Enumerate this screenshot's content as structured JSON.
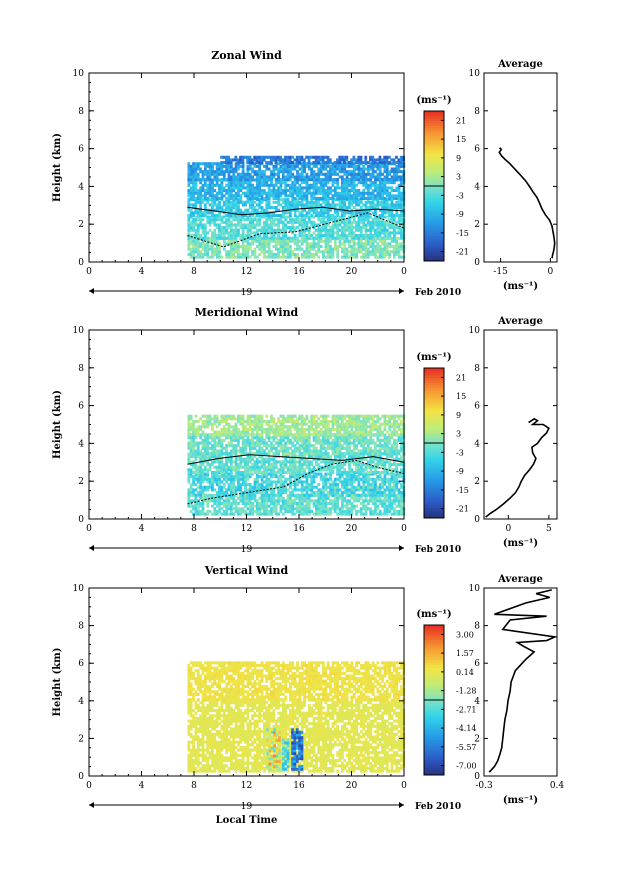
{
  "chart_data": [
    {
      "type": "heatmap",
      "title": "Zonal Wind",
      "xlabel": "",
      "ylabel": "Height (km)",
      "xlim": [
        0,
        24
      ],
      "ylim": [
        0,
        10
      ],
      "x_ticks": [
        "0",
        "4",
        "8",
        "12",
        "16",
        "20",
        "0"
      ],
      "y_ticks": [
        "0",
        "2",
        "4",
        "6",
        "8",
        "10"
      ],
      "date_day": "19",
      "date_label": "Feb 2010",
      "colorbar": {
        "unit": "(ms⁻¹)",
        "ticks": [
          "21",
          "15",
          "9",
          "3",
          "-3",
          "-9",
          "-15",
          "-21"
        ],
        "min": -24,
        "max": 24
      },
      "profile": {
        "title": "Average",
        "xlabel": "(ms⁻¹)",
        "xlim": [
          -20,
          2
        ],
        "ylim": [
          0,
          10
        ],
        "x_ticks": [
          "-15",
          "0"
        ],
        "y_ticks": [
          "0",
          "2",
          "4",
          "6",
          "8",
          "10"
        ],
        "points": [
          [
            0.5,
            0.2
          ],
          [
            0.7,
            0.4
          ],
          [
            1.0,
            0.6
          ],
          [
            1.2,
            0.8
          ],
          [
            1.3,
            1.0
          ],
          [
            1.1,
            1.3
          ],
          [
            0.8,
            1.6
          ],
          [
            0.5,
            1.9
          ],
          [
            -0.2,
            2.2
          ],
          [
            -1.5,
            2.5
          ],
          [
            -2.5,
            2.8
          ],
          [
            -3.2,
            3.1
          ],
          [
            -4.0,
            3.4
          ],
          [
            -5.2,
            3.7
          ],
          [
            -6.3,
            4.0
          ],
          [
            -7.5,
            4.3
          ],
          [
            -9.0,
            4.6
          ],
          [
            -10.6,
            4.9
          ],
          [
            -12.2,
            5.2
          ],
          [
            -13.5,
            5.4
          ],
          [
            -14.6,
            5.6
          ],
          [
            -15.4,
            5.8
          ],
          [
            -14.8,
            5.95
          ],
          [
            -15.3,
            6.05
          ]
        ]
      },
      "contours": [
        "1.4:0.8:1.5:1.6:2.1:2.6:1.8",
        "2.9:2.7:2.5:2.6:2.8:2.9:2.7:2.8:2.7"
      ],
      "field": [
        {
          "t": [
            7.5,
            24.0
          ],
          "h": [
            0.2,
            1.2
          ],
          "v": [
            -3,
            4
          ]
        },
        {
          "t": [
            7.5,
            24.0
          ],
          "h": [
            1.2,
            2.4
          ],
          "v": [
            -6,
            1
          ]
        },
        {
          "t": [
            7.5,
            24.0
          ],
          "h": [
            2.4,
            3.3
          ],
          "v": [
            -9,
            -2
          ]
        },
        {
          "t": [
            7.5,
            24.0
          ],
          "h": [
            3.3,
            4.3
          ],
          "v": [
            -12,
            -5
          ]
        },
        {
          "t": [
            7.5,
            24.0
          ],
          "h": [
            4.3,
            5.2
          ],
          "v": [
            -15,
            -7
          ]
        },
        {
          "t": [
            10.0,
            24.0
          ],
          "h": [
            5.2,
            5.6
          ],
          "v": [
            -19,
            -12
          ]
        }
      ]
    },
    {
      "type": "heatmap",
      "title": "Meridional Wind",
      "xlabel": "",
      "ylabel": "Height (km)",
      "xlim": [
        0,
        24
      ],
      "ylim": [
        0,
        10
      ],
      "x_ticks": [
        "0",
        "4",
        "8",
        "12",
        "16",
        "20",
        "0"
      ],
      "y_ticks": [
        "0",
        "2",
        "4",
        "6",
        "8",
        "10"
      ],
      "date_day": "19",
      "date_label": "Feb 2010",
      "colorbar": {
        "unit": "(ms⁻¹)",
        "ticks": [
          "21",
          "15",
          "9",
          "3",
          "-3",
          "-9",
          "-15",
          "-21"
        ],
        "min": -24,
        "max": 24
      },
      "profile": {
        "title": "Average",
        "xlabel": "(ms⁻¹)",
        "xlim": [
          -3,
          6
        ],
        "ylim": [
          0,
          10
        ],
        "x_ticks": [
          "0",
          "5"
        ],
        "y_ticks": [
          "0",
          "2",
          "4",
          "6",
          "8",
          "10"
        ],
        "points": [
          [
            -2.8,
            0.1
          ],
          [
            -2.2,
            0.3
          ],
          [
            -1.5,
            0.5
          ],
          [
            -0.6,
            0.8
          ],
          [
            0.2,
            1.1
          ],
          [
            0.9,
            1.4
          ],
          [
            1.3,
            1.7
          ],
          [
            1.6,
            2.0
          ],
          [
            2.0,
            2.3
          ],
          [
            2.6,
            2.6
          ],
          [
            3.1,
            2.9
          ],
          [
            3.4,
            3.2
          ],
          [
            3.0,
            3.5
          ],
          [
            2.9,
            3.8
          ],
          [
            3.6,
            4.0
          ],
          [
            4.1,
            4.3
          ],
          [
            4.7,
            4.55
          ],
          [
            5.0,
            4.8
          ],
          [
            4.3,
            5.0
          ],
          [
            3.0,
            5.0
          ],
          [
            3.6,
            5.2
          ],
          [
            3.2,
            5.3
          ],
          [
            2.5,
            5.1
          ]
        ]
      },
      "contours": [
        "0.8:1.1:1.3:1.5:1.7:2.4:2.9:3.1:2.7:2.4",
        "2.9:3.2:3.4:3.3:3.2:3.1:3.3:3.0"
      ],
      "field": [
        {
          "t": [
            7.5,
            24.0
          ],
          "h": [
            0.2,
            1.2
          ],
          "v": [
            -5,
            2
          ]
        },
        {
          "t": [
            7.5,
            24.0
          ],
          "h": [
            1.2,
            2.4
          ],
          "v": [
            -8,
            1
          ]
        },
        {
          "t": [
            7.5,
            24.0
          ],
          "h": [
            2.4,
            3.4
          ],
          "v": [
            -5,
            2
          ]
        },
        {
          "t": [
            7.5,
            24.0
          ],
          "h": [
            3.4,
            4.4
          ],
          "v": [
            -4,
            3
          ]
        },
        {
          "t": [
            7.5,
            24.0
          ],
          "h": [
            4.4,
            5.4
          ],
          "v": [
            0,
            6
          ]
        }
      ]
    },
    {
      "type": "heatmap",
      "title": "Vertical Wind",
      "xlabel": "Local Time",
      "ylabel": "Height (km)",
      "xlim": [
        0,
        24
      ],
      "ylim": [
        0,
        10
      ],
      "x_ticks": [
        "0",
        "4",
        "8",
        "12",
        "16",
        "20",
        "0"
      ],
      "y_ticks": [
        "0",
        "2",
        "4",
        "6",
        "8",
        "10"
      ],
      "date_day": "19",
      "date_label": "Feb 2010",
      "colorbar": {
        "unit": "(ms⁻¹)",
        "ticks": [
          "3.00",
          "1.57",
          "0.14",
          "-1.28",
          "-2.71",
          "-4.14",
          "-5.57",
          "-7.00"
        ],
        "min": -7.7,
        "max": 3.7
      },
      "profile": {
        "title": "Average",
        "xlabel": "(ms⁻¹)",
        "xlim": [
          -0.3,
          0.4
        ],
        "ylim": [
          0,
          10
        ],
        "x_ticks": [
          "-0.3",
          "0.4"
        ],
        "y_ticks": [
          "0",
          "2",
          "4",
          "6",
          "8",
          "10"
        ],
        "points": [
          [
            -0.25,
            0.2
          ],
          [
            -0.2,
            0.5
          ],
          [
            -0.17,
            0.8
          ],
          [
            -0.15,
            1.1
          ],
          [
            -0.13,
            1.5
          ],
          [
            -0.12,
            2.0
          ],
          [
            -0.11,
            2.5
          ],
          [
            -0.1,
            3.0
          ],
          [
            -0.08,
            3.5
          ],
          [
            -0.07,
            4.0
          ],
          [
            -0.05,
            4.5
          ],
          [
            -0.04,
            5.0
          ],
          [
            -0.02,
            5.3
          ],
          [
            0.0,
            5.6
          ],
          [
            0.05,
            5.9
          ],
          [
            0.1,
            6.2
          ],
          [
            0.18,
            6.6
          ],
          [
            0.08,
            6.9
          ],
          [
            0.02,
            7.1
          ],
          [
            0.3,
            7.2
          ],
          [
            0.38,
            7.4
          ],
          [
            -0.12,
            7.8
          ],
          [
            -0.05,
            8.3
          ],
          [
            0.3,
            8.5
          ],
          [
            -0.2,
            8.6
          ],
          [
            0.1,
            9.2
          ],
          [
            0.33,
            9.5
          ],
          [
            0.2,
            9.7
          ],
          [
            0.35,
            9.9
          ]
        ]
      },
      "contours": [],
      "field": [
        {
          "t": [
            7.5,
            24.0
          ],
          "h": [
            0.2,
            4.0
          ],
          "v": [
            -0.2,
            0.4
          ]
        },
        {
          "t": [
            7.5,
            24.0
          ],
          "h": [
            4.0,
            6.0
          ],
          "v": [
            0.1,
            0.8
          ]
        },
        {
          "t": [
            13.5,
            14.5
          ],
          "h": [
            0.3,
            2.5
          ],
          "v": [
            -2.5,
            2.5
          ]
        },
        {
          "t": [
            15.4,
            16.2
          ],
          "h": [
            0.3,
            2.5
          ],
          "v": [
            -7.0,
            -4.0
          ]
        },
        {
          "t": [
            14.7,
            15.1
          ],
          "h": [
            0.3,
            2.0
          ],
          "v": [
            -4.0,
            -2.0
          ]
        }
      ]
    }
  ]
}
